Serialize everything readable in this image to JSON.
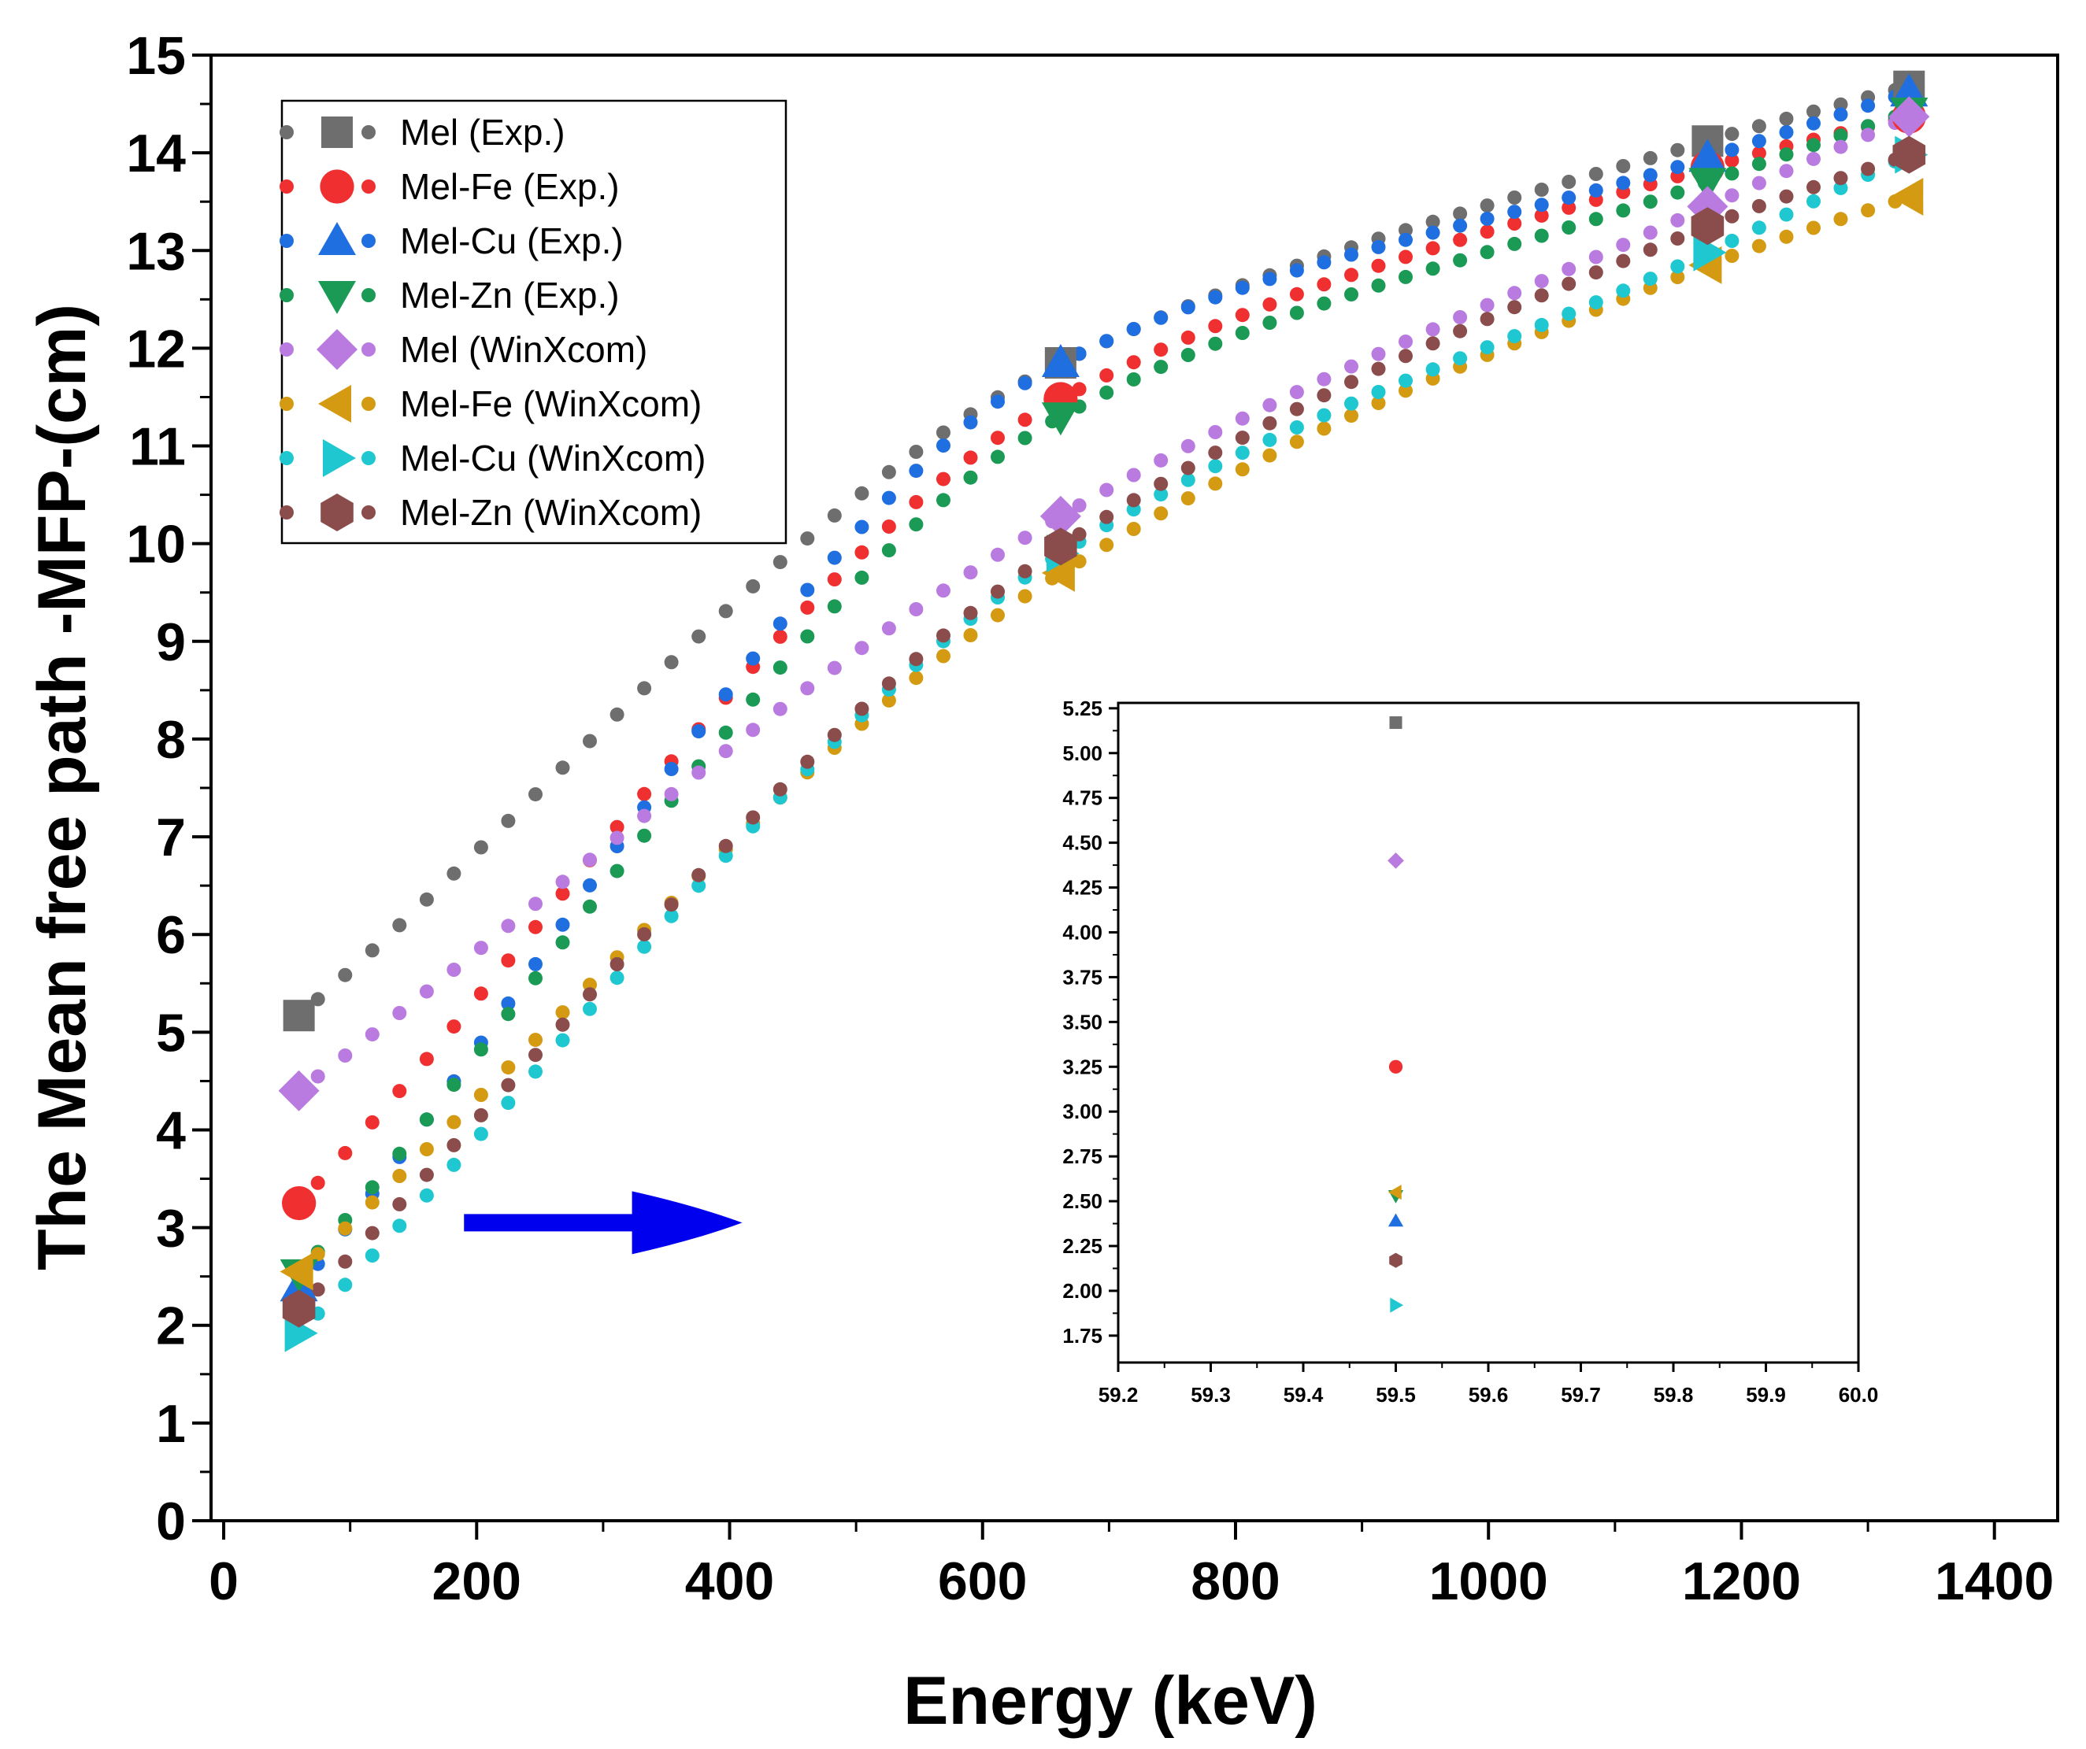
{
  "chart_data": {
    "type": "scatter",
    "title": "",
    "xlabel": "Energy (keV)",
    "ylabel": "The Mean free path -MFP-(cm)",
    "xlim": [
      -10,
      1450
    ],
    "ylim": [
      0,
      15
    ],
    "xticks": [
      "0",
      "200",
      "400",
      "600",
      "800",
      "1000",
      "1200",
      "1400"
    ],
    "xtick_values": [
      0,
      200,
      400,
      600,
      800,
      1000,
      1200,
      1400
    ],
    "yticks": [
      "0",
      "1",
      "2",
      "3",
      "4",
      "5",
      "6",
      "7",
      "8",
      "9",
      "10",
      "11",
      "12",
      "13",
      "14",
      "15"
    ],
    "ytick_values": [
      0,
      1,
      2,
      3,
      4,
      5,
      6,
      7,
      8,
      9,
      10,
      11,
      12,
      13,
      14,
      15
    ],
    "legend_position": "top-left",
    "energies": [
      59.5,
      661.7,
      1173.2,
      1332.5
    ],
    "series": [
      {
        "name": "Mel (Exp.)",
        "marker": "square",
        "color": "#6e6e6e",
        "values": [
          5.17,
          11.85,
          14.12,
          14.68
        ]
      },
      {
        "name": "Mel-Fe (Exp.)",
        "marker": "circle",
        "color": "#f03030",
        "values": [
          3.25,
          11.48,
          13.85,
          14.37
        ]
      },
      {
        "name": "Mel-Cu (Exp.)",
        "marker": "triangle-up",
        "color": "#1f6fe0",
        "values": [
          2.39,
          11.85,
          13.95,
          14.62
        ]
      },
      {
        "name": "Mel-Zn (Exp.)",
        "marker": "triangle-down",
        "color": "#1a9a55",
        "values": [
          2.53,
          11.3,
          13.7,
          14.42
        ]
      },
      {
        "name": "Mel (WinXcom)",
        "marker": "diamond",
        "color": "#b97be0",
        "values": [
          4.4,
          10.28,
          13.45,
          14.37
        ]
      },
      {
        "name": "Mel-Fe (WinXcom)",
        "marker": "triangle-left",
        "color": "#d39a12",
        "values": [
          2.55,
          9.7,
          12.85,
          13.55
        ]
      },
      {
        "name": "Mel-Cu (WinXcom)",
        "marker": "triangle-right",
        "color": "#1fc8d0",
        "values": [
          1.92,
          9.9,
          12.98,
          13.98
        ]
      },
      {
        "name": "Mel-Zn (WinXcom)",
        "marker": "hexagon",
        "color": "#8b4c4c",
        "values": [
          2.17,
          9.97,
          13.25,
          13.98
        ]
      }
    ],
    "annotation": {
      "type": "arrow",
      "color": "#0000ee",
      "from": [
        190,
        3.05
      ],
      "to": [
        410,
        3.05
      ]
    },
    "inset": {
      "xlim": [
        59.2,
        60.0
      ],
      "ylim": [
        1.6,
        5.28
      ],
      "xticks": [
        "59.2",
        "59.3",
        "59.4",
        "59.5",
        "59.6",
        "59.7",
        "59.8",
        "59.9",
        "60.0"
      ],
      "xtick_values": [
        59.2,
        59.3,
        59.4,
        59.5,
        59.6,
        59.7,
        59.8,
        59.9,
        60.0
      ],
      "yticks": [
        "1.75",
        "2.00",
        "2.25",
        "2.50",
        "2.75",
        "3.00",
        "3.25",
        "3.50",
        "3.75",
        "4.00",
        "4.25",
        "4.50",
        "4.75",
        "5.00",
        "5.25"
      ],
      "ytick_values": [
        1.75,
        2.0,
        2.25,
        2.5,
        2.75,
        3.0,
        3.25,
        3.5,
        3.75,
        4.0,
        4.25,
        4.5,
        4.75,
        5.0,
        5.25
      ],
      "x": 59.5
    }
  }
}
